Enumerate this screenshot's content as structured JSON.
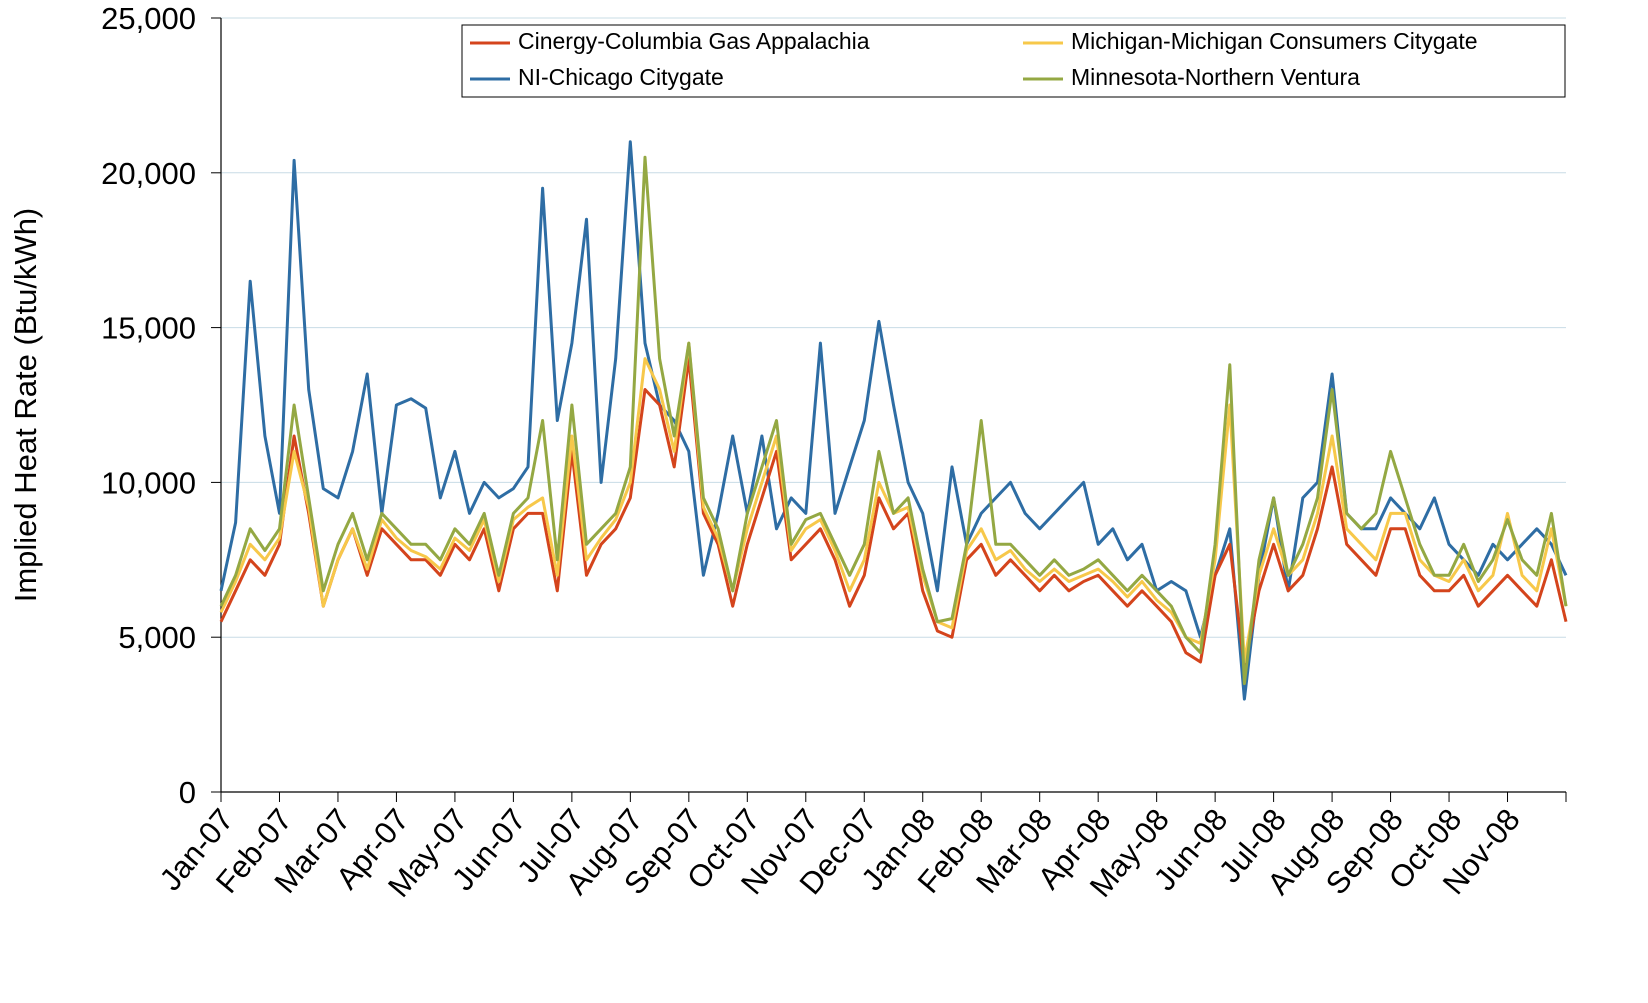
{
  "chart_data": {
    "type": "line",
    "y_label": "Implied Heat Rate (Btu/kWh)",
    "xlim": [
      0,
      23
    ],
    "xticks": [
      {
        "value": 0,
        "label": "Jan-07"
      },
      {
        "value": 1,
        "label": "Feb-07"
      },
      {
        "value": 2,
        "label": "Mar-07"
      },
      {
        "value": 3,
        "label": "Apr-07"
      },
      {
        "value": 4,
        "label": "May-07"
      },
      {
        "value": 5,
        "label": "Jun-07"
      },
      {
        "value": 6,
        "label": "Jul-07"
      },
      {
        "value": 7,
        "label": "Aug-07"
      },
      {
        "value": 8,
        "label": "Sep-07"
      },
      {
        "value": 9,
        "label": "Oct-07"
      },
      {
        "value": 10,
        "label": "Nov-07"
      },
      {
        "value": 11,
        "label": "Dec-07"
      },
      {
        "value": 12,
        "label": "Jan-08"
      },
      {
        "value": 13,
        "label": "Feb-08"
      },
      {
        "value": 14,
        "label": "Mar-08"
      },
      {
        "value": 15,
        "label": "Apr-08"
      },
      {
        "value": 16,
        "label": "May-08"
      },
      {
        "value": 17,
        "label": "Jun-08"
      },
      {
        "value": 18,
        "label": "Jul-08"
      },
      {
        "value": 19,
        "label": "Aug-08"
      },
      {
        "value": 20,
        "label": "Sep-08"
      },
      {
        "value": 21,
        "label": "Oct-08"
      },
      {
        "value": 22,
        "label": "Nov-08"
      }
    ],
    "ylim": [
      0,
      25000
    ],
    "yticks": [
      0,
      {
        "value": 5000,
        "label": "5,000"
      },
      {
        "value": 10000,
        "label": "10,000"
      },
      {
        "value": 15000,
        "label": "15,000"
      },
      {
        "value": 20000,
        "label": "20,000"
      },
      {
        "value": 25000,
        "label": "25,000"
      }
    ],
    "grid": true,
    "legend": "top-right",
    "x": [
      0,
      0.25,
      0.5,
      0.75,
      1,
      1.25,
      1.5,
      1.75,
      2,
      2.25,
      2.5,
      2.75,
      3,
      3.25,
      3.5,
      3.75,
      4,
      4.25,
      4.5,
      4.75,
      5,
      5.25,
      5.5,
      5.75,
      6,
      6.25,
      6.5,
      6.75,
      7,
      7.25,
      7.5,
      7.75,
      8,
      8.25,
      8.5,
      8.75,
      9,
      9.25,
      9.5,
      9.75,
      10,
      10.25,
      10.5,
      10.75,
      11,
      11.25,
      11.5,
      11.75,
      12,
      12.25,
      12.5,
      12.75,
      13,
      13.25,
      13.5,
      13.75,
      14,
      14.25,
      14.5,
      14.75,
      15,
      15.25,
      15.5,
      15.75,
      16,
      16.25,
      16.5,
      16.75,
      17,
      17.25,
      17.5,
      17.75,
      18,
      18.25,
      18.5,
      18.75,
      19,
      19.25,
      19.5,
      19.75,
      20,
      20.25,
      20.5,
      20.75,
      21,
      21.25,
      21.5,
      21.75,
      22,
      22.25,
      22.5,
      22.75,
      23
    ],
    "series": [
      {
        "name": "Cinergy-Columbia Gas Appalachia",
        "color": "#d4441c",
        "values": [
          5500,
          6500,
          7500,
          7000,
          8000,
          11500,
          9000,
          6000,
          7500,
          8500,
          7000,
          8500,
          8000,
          7500,
          7500,
          7000,
          8000,
          7500,
          8500,
          6500,
          8500,
          9000,
          9000,
          6500,
          11000,
          7000,
          8000,
          8500,
          9500,
          13000,
          12500,
          10500,
          14000,
          9000,
          8000,
          6000,
          8000,
          9500,
          11000,
          7500,
          8000,
          8500,
          7500,
          6000,
          7000,
          9500,
          8500,
          9000,
          6500,
          5200,
          5000,
          7500,
          8000,
          7000,
          7500,
          7000,
          6500,
          7000,
          6500,
          6800,
          7000,
          6500,
          6000,
          6500,
          6000,
          5500,
          4500,
          4200,
          7000,
          8000,
          4000,
          6500,
          8000,
          6500,
          7000,
          8500,
          10500,
          8000,
          7500,
          7000,
          8500,
          8500,
          7000,
          6500,
          6500,
          7000,
          6000,
          6500,
          7000,
          6500,
          6000,
          7500,
          5500
        ]
      },
      {
        "name": "Michigan-Michigan Consumers Citygate",
        "color": "#f7c84a",
        "values": [
          5800,
          6800,
          8000,
          7500,
          8200,
          11000,
          9200,
          6000,
          7500,
          8500,
          7200,
          8800,
          8200,
          7800,
          7600,
          7200,
          8200,
          7800,
          8800,
          6800,
          8800,
          9200,
          9500,
          7000,
          11500,
          7500,
          8200,
          8800,
          10000,
          14000,
          13000,
          11000,
          14500,
          9200,
          8200,
          6500,
          8500,
          10000,
          11500,
          7800,
          8500,
          8800,
          7800,
          6500,
          7500,
          10000,
          9000,
          9200,
          7000,
          5500,
          5300,
          7800,
          8500,
          7500,
          7800,
          7200,
          6800,
          7200,
          6800,
          7000,
          7200,
          6800,
          6300,
          6800,
          6200,
          5800,
          5000,
          4800,
          7500,
          12500,
          4200,
          7000,
          8500,
          7000,
          7500,
          9000,
          11500,
          8500,
          8000,
          7500,
          9000,
          9000,
          7500,
          7000,
          6800,
          7500,
          6500,
          7000,
          9000,
          7000,
          6500,
          8500,
          6000
        ]
      },
      {
        "name": "NI-Chicago Citygate",
        "color": "#2e6da4",
        "values": [
          6500,
          8700,
          16500,
          11500,
          9000,
          20400,
          13000,
          9800,
          9500,
          11000,
          13500,
          9000,
          12500,
          12700,
          12400,
          9500,
          11000,
          9000,
          10000,
          9500,
          9800,
          10500,
          19500,
          12000,
          14500,
          18500,
          10000,
          14000,
          21000,
          14500,
          12500,
          12000,
          11000,
          7000,
          9000,
          11500,
          9000,
          11500,
          8500,
          9500,
          9000,
          14500,
          9000,
          10500,
          12000,
          15200,
          12500,
          10000,
          9000,
          6500,
          10500,
          8000,
          9000,
          9500,
          10000,
          9000,
          8500,
          9000,
          9500,
          10000,
          8000,
          8500,
          7500,
          8000,
          6500,
          6800,
          6500,
          5000,
          7000,
          8500,
          3000,
          7000,
          9500,
          6500,
          9500,
          10000,
          13500,
          9000,
          8500,
          8500,
          9500,
          9000,
          8500,
          9500,
          8000,
          7500,
          7000,
          8000,
          7500,
          8000,
          8500,
          8000,
          7000
        ]
      },
      {
        "name": "Minnesota-Northern Ventura",
        "color": "#94a843",
        "values": [
          6000,
          7000,
          8500,
          7800,
          8500,
          12500,
          9500,
          6500,
          8000,
          9000,
          7500,
          9000,
          8500,
          8000,
          8000,
          7500,
          8500,
          8000,
          9000,
          7000,
          9000,
          9500,
          12000,
          7500,
          12500,
          8000,
          8500,
          9000,
          10500,
          20500,
          14000,
          11500,
          14500,
          9500,
          8500,
          6500,
          9000,
          10500,
          12000,
          8000,
          8800,
          9000,
          8000,
          7000,
          8000,
          11000,
          9000,
          9500,
          7200,
          5500,
          5600,
          8000,
          12000,
          8000,
          8000,
          7500,
          7000,
          7500,
          7000,
          7200,
          7500,
          7000,
          6500,
          7000,
          6500,
          6000,
          5000,
          4500,
          8000,
          13800,
          3500,
          7500,
          9500,
          7000,
          8000,
          9500,
          13000,
          9000,
          8500,
          9000,
          11000,
          9500,
          8000,
          7000,
          7000,
          8000,
          6800,
          7500,
          8800,
          7500,
          7000,
          9000,
          6000
        ]
      }
    ]
  }
}
